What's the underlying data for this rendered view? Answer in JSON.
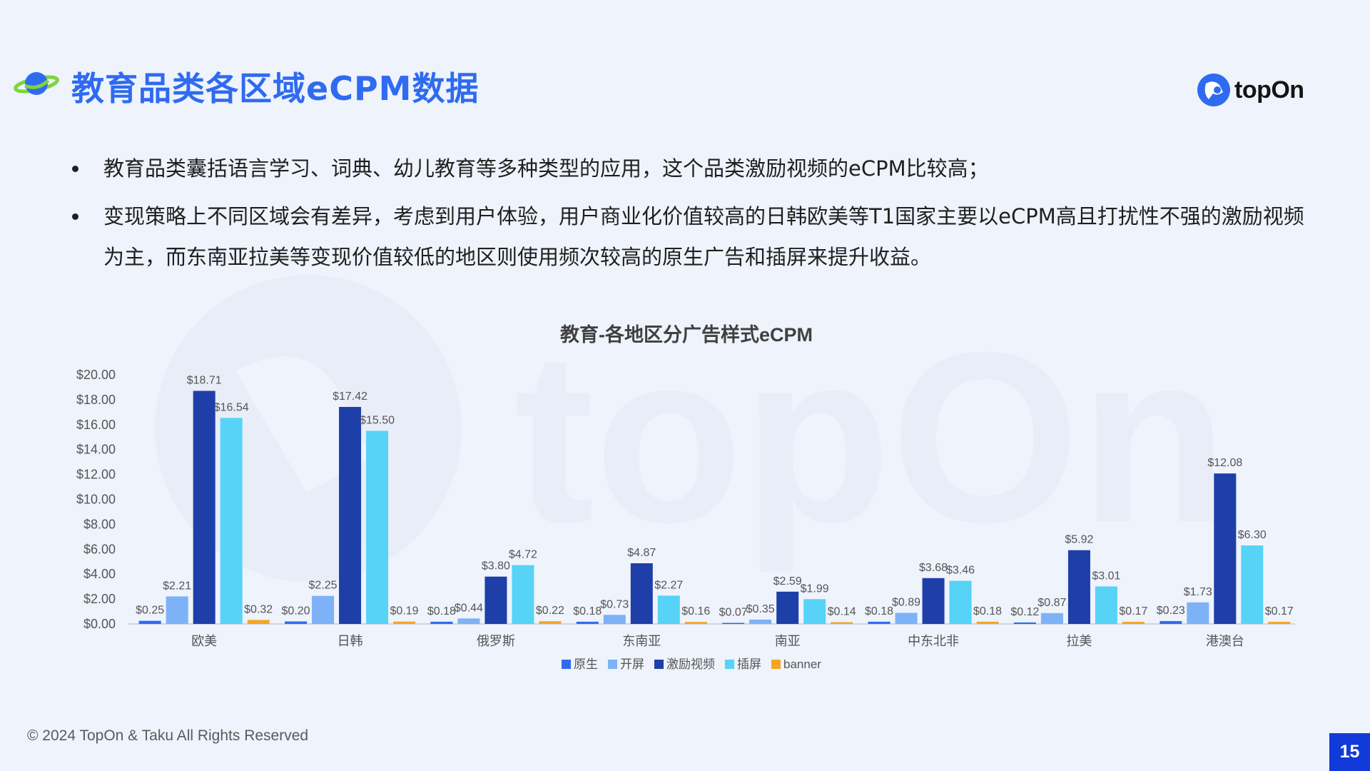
{
  "header": {
    "title": "教育品类各区域eCPM数据",
    "icon": "planet-icon",
    "brand": {
      "name": "topOn",
      "icon": "topon-logo-icon"
    }
  },
  "watermark": {
    "text": "topOn"
  },
  "bullets": [
    "教育品类囊括语言学习、词典、幼儿教育等多种类型的应用，这个品类激励视频的eCPM比较高；",
    "变现策略上不同区域会有差异，考虑到用户体验，用户商业化价值较高的日韩欧美等T1国家主要以eCPM高且打扰性不强的激励视频为主，而东南亚拉美等变现价值较低的地区则使用频次较高的原生广告和插屏来提升收益。"
  ],
  "chart_data": {
    "type": "bar",
    "title": "教育-各地区分广告样式eCPM",
    "categories": [
      "欧美",
      "日韩",
      "俄罗斯",
      "东南亚",
      "南亚",
      "中东北非",
      "拉美",
      "港澳台"
    ],
    "ylim": [
      0,
      20
    ],
    "yticks": [
      "$0.00",
      "$2.00",
      "$4.00",
      "$6.00",
      "$8.00",
      "$10.00",
      "$12.00",
      "$14.00",
      "$16.00",
      "$18.00",
      "$20.00"
    ],
    "legend_position": "bottom",
    "grid": false,
    "series": [
      {
        "name": "原生",
        "color": "#2f6bf0",
        "values": [
          0.25,
          0.2,
          0.18,
          0.18,
          0.07,
          0.18,
          0.12,
          0.23
        ],
        "labels": [
          "$0.25",
          "$0.20",
          "$0.18",
          "$0.18",
          "$0.07",
          "$0.18",
          "$0.12",
          "$0.23"
        ]
      },
      {
        "name": "开屏",
        "color": "#7eb2f7",
        "values": [
          2.21,
          2.25,
          0.44,
          0.73,
          0.35,
          0.89,
          0.87,
          1.73
        ],
        "labels": [
          "$2.21",
          "$2.25",
          "$0.44",
          "$0.73",
          "$0.35",
          "$0.89",
          "$0.87",
          "$1.73"
        ]
      },
      {
        "name": "激励视频",
        "color": "#1e3fa8",
        "values": [
          18.71,
          17.42,
          3.8,
          4.87,
          2.59,
          3.68,
          5.92,
          12.08
        ],
        "labels": [
          "$18.71",
          "$17.42",
          "$3.80",
          "$4.87",
          "$2.59",
          "$3.68",
          "$5.92",
          "$12.08"
        ]
      },
      {
        "name": "插屏",
        "color": "#56d3f7",
        "values": [
          16.54,
          15.5,
          4.72,
          2.27,
          1.99,
          3.46,
          3.01,
          6.3
        ],
        "labels": [
          "$16.54",
          "$15.50",
          "$4.72",
          "$2.27",
          "$1.99",
          "$3.46",
          "$3.01",
          "$6.30"
        ]
      },
      {
        "name": "banner",
        "color": "#f5a623",
        "values": [
          0.32,
          0.19,
          0.22,
          0.16,
          0.14,
          0.18,
          0.17,
          0.17
        ],
        "labels": [
          "$0.32",
          "$0.19",
          "$0.22",
          "$0.16",
          "$0.14",
          "$0.18",
          "$0.17",
          "$0.17"
        ]
      }
    ]
  },
  "footer": {
    "copyright": "© 2024 TopOn & Taku All Rights Reserved",
    "page_number": "15"
  }
}
